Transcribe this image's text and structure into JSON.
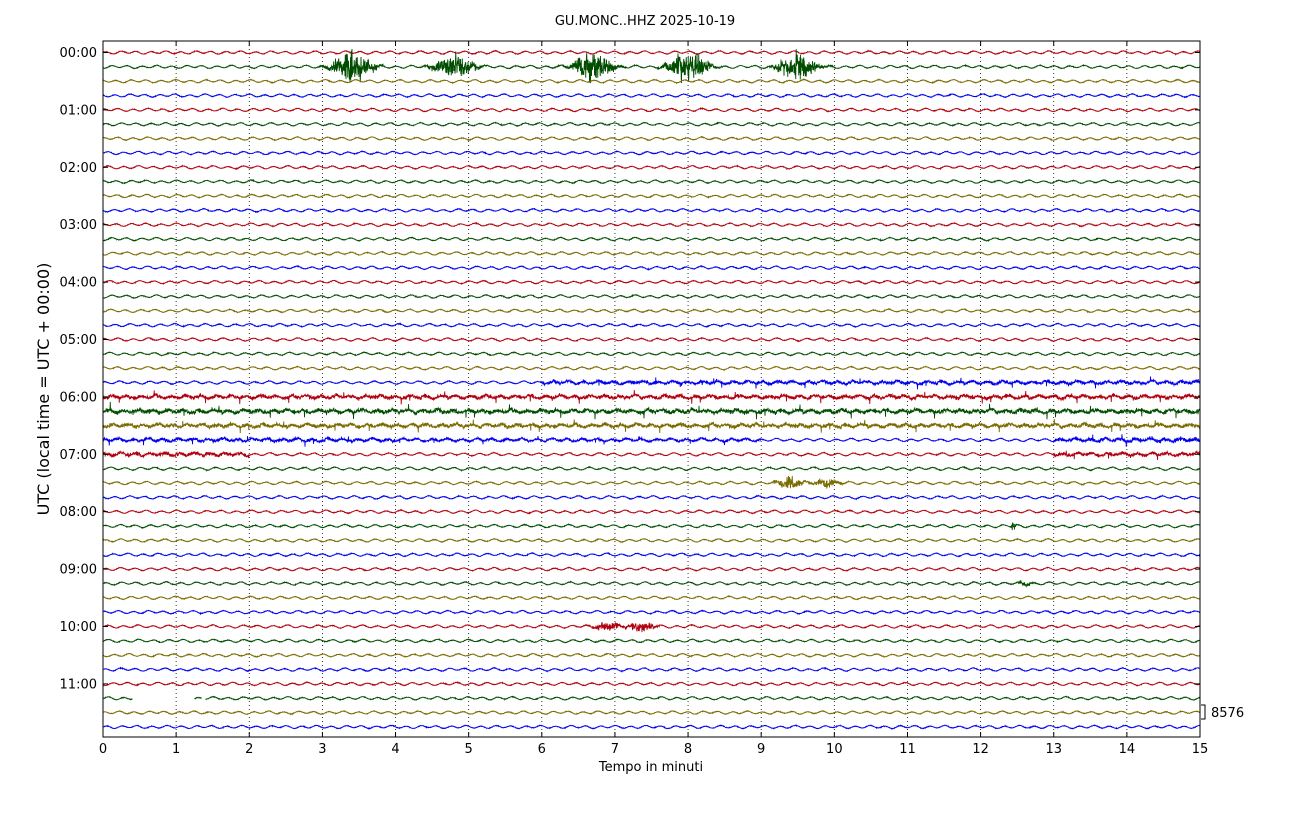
{
  "title": "GU.MONC..HHZ 2025-10-19",
  "chart_data": {
    "type": "line",
    "title": "GU.MONC..HHZ 2025-10-19",
    "xlabel": "Tempo in minuti",
    "ylabel": "UTC (local time = UTC + 00:00)",
    "xlim": [
      0,
      15
    ],
    "x_ticks": [
      "0",
      "1",
      "2",
      "3",
      "4",
      "5",
      "6",
      "7",
      "8",
      "9",
      "10",
      "11",
      "12",
      "13",
      "14",
      "15"
    ],
    "y_ticks": [
      "00:00",
      "01:00",
      "02:00",
      "03:00",
      "04:00",
      "05:00",
      "06:00",
      "07:00",
      "08:00",
      "09:00",
      "10:00",
      "11:00"
    ],
    "grid": "dotted vertical at each minute",
    "trace_colors": [
      "#b0000f",
      "#004d00",
      "#7a6a00",
      "#0000ee"
    ],
    "trace_count": 48,
    "minutes_per_trace": 15,
    "scale_label": "8576",
    "events": [
      {
        "trace": 1,
        "center_min": 3.4,
        "amplitude": 26,
        "width_min": 0.35
      },
      {
        "trace": 1,
        "center_min": 4.8,
        "amplitude": 22,
        "width_min": 0.35
      },
      {
        "trace": 1,
        "center_min": 6.7,
        "amplitude": 26,
        "width_min": 0.35
      },
      {
        "trace": 1,
        "center_min": 8.0,
        "amplitude": 28,
        "width_min": 0.35
      },
      {
        "trace": 1,
        "center_min": 9.5,
        "amplitude": 24,
        "width_min": 0.35
      },
      {
        "trace": 30,
        "center_min": 9.4,
        "amplitude": 11,
        "width_min": 0.25
      },
      {
        "trace": 30,
        "center_min": 9.9,
        "amplitude": 9,
        "width_min": 0.25
      },
      {
        "trace": 40,
        "center_min": 6.9,
        "amplitude": 7,
        "width_min": 0.25
      },
      {
        "trace": 40,
        "center_min": 7.35,
        "amplitude": 9,
        "width_min": 0.25
      },
      {
        "trace": 33,
        "center_min": 12.45,
        "amplitude": 9,
        "width_min": 0.05
      },
      {
        "trace": 37,
        "center_min": 12.6,
        "amplitude": 4,
        "width_min": 0.15
      }
    ],
    "noisy_segments": [
      {
        "trace": 23,
        "from_min": 6.0,
        "to_min": 15.0,
        "amplitude": 3.5
      },
      {
        "trace": 24,
        "from_min": 0.0,
        "to_min": 15.0,
        "amplitude": 4.0
      },
      {
        "trace": 25,
        "from_min": 0.0,
        "to_min": 15.0,
        "amplitude": 4.5
      },
      {
        "trace": 26,
        "from_min": 0.0,
        "to_min": 15.0,
        "amplitude": 4.0
      },
      {
        "trace": 27,
        "from_min": 0.0,
        "to_min": 4.0,
        "amplitude": 3.5
      },
      {
        "trace": 27,
        "from_min": 4.0,
        "to_min": 9.0,
        "amplitude": 2.5
      },
      {
        "trace": 27,
        "from_min": 13.0,
        "to_min": 15.0,
        "amplitude": 4.0
      },
      {
        "trace": 28,
        "from_min": 0.0,
        "to_min": 2.0,
        "amplitude": 4.0
      },
      {
        "trace": 28,
        "from_min": 13.0,
        "to_min": 15.0,
        "amplitude": 3.5
      }
    ],
    "gaps": [
      {
        "trace": 45,
        "from_min": 0.4,
        "to_min": 1.25
      },
      {
        "trace": 45,
        "from_min": 1.35,
        "to_min": 1.4
      }
    ]
  }
}
